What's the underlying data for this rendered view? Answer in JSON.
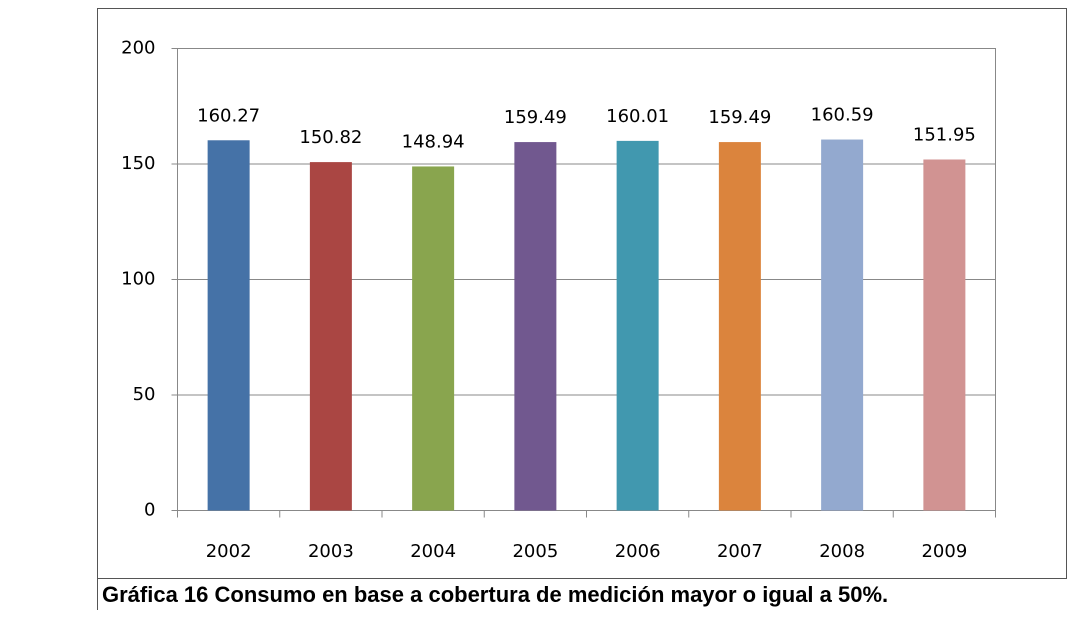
{
  "chart_data": {
    "type": "bar",
    "caption": "Gráfica 16 Consumo en base a cobertura de medición mayor o igual a 50%.",
    "categories": [
      "2002",
      "2003",
      "2004",
      "2005",
      "2006",
      "2007",
      "2008",
      "2009"
    ],
    "values": [
      160.27,
      150.82,
      148.94,
      159.49,
      160.01,
      159.49,
      160.59,
      151.95
    ],
    "colors": [
      "#4572a7",
      "#aa4643",
      "#89a54e",
      "#71588f",
      "#4198af",
      "#db843d",
      "#93a9cf",
      "#d19392"
    ],
    "ylim": [
      0,
      200
    ],
    "yticks": [
      0,
      50,
      100,
      150,
      200
    ],
    "grid": true
  }
}
